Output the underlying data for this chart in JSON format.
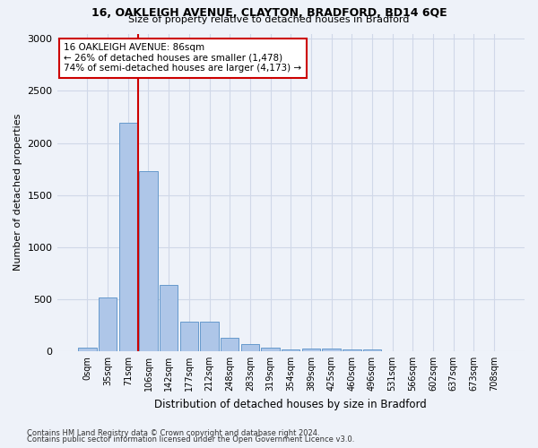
{
  "title1": "16, OAKLEIGH AVENUE, CLAYTON, BRADFORD, BD14 6QE",
  "title2": "Size of property relative to detached houses in Bradford",
  "xlabel": "Distribution of detached houses by size in Bradford",
  "ylabel": "Number of detached properties",
  "footnote1": "Contains HM Land Registry data © Crown copyright and database right 2024.",
  "footnote2": "Contains public sector information licensed under the Open Government Licence v3.0.",
  "bar_labels": [
    "0sqm",
    "35sqm",
    "71sqm",
    "106sqm",
    "142sqm",
    "177sqm",
    "212sqm",
    "248sqm",
    "283sqm",
    "319sqm",
    "354sqm",
    "389sqm",
    "425sqm",
    "460sqm",
    "496sqm",
    "531sqm",
    "566sqm",
    "602sqm",
    "637sqm",
    "673sqm",
    "708sqm"
  ],
  "bar_values": [
    30,
    520,
    2190,
    1730,
    640,
    280,
    280,
    130,
    65,
    35,
    20,
    25,
    25,
    20,
    20,
    0,
    0,
    0,
    0,
    0,
    0
  ],
  "bar_color": "#aec6e8",
  "bar_edge_color": "#6699cc",
  "grid_color": "#d0d8e8",
  "bg_color": "#eef2f9",
  "vline_color": "#cc0000",
  "vline_pos": 2.5,
  "annotation_text": "16 OAKLEIGH AVENUE: 86sqm\n← 26% of detached houses are smaller (1,478)\n74% of semi-detached houses are larger (4,173) →",
  "annotation_box_color": "#ffffff",
  "annotation_box_edge": "#cc0000",
  "ylim": [
    0,
    3050
  ],
  "yticks": [
    0,
    500,
    1000,
    1500,
    2000,
    2500,
    3000
  ]
}
